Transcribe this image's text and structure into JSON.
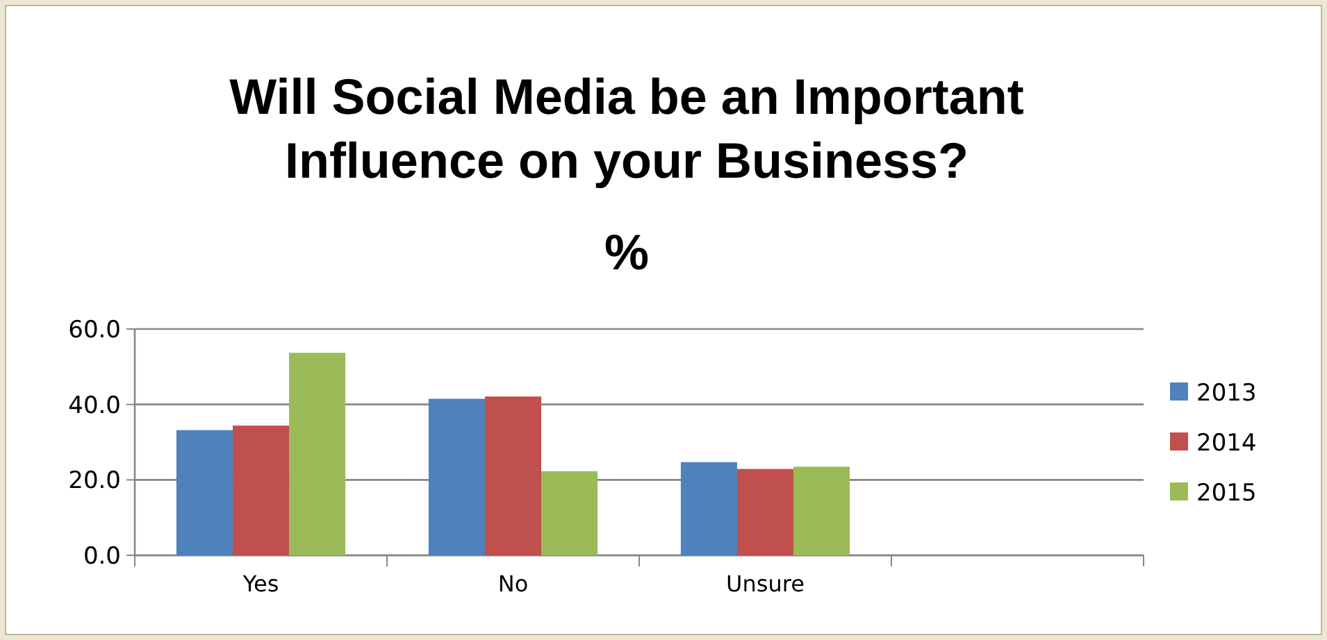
{
  "chart_data": {
    "type": "bar",
    "title": "Will Social Media be an Important Influence on your Business?",
    "subtitle": "%",
    "categories": [
      "Yes",
      "No",
      "Unsure",
      null
    ],
    "series": [
      {
        "name": "2013",
        "color": "#4f81bd",
        "values": [
          33.2,
          41.5,
          24.7,
          null
        ]
      },
      {
        "name": "2014",
        "color": "#c0504d",
        "values": [
          34.4,
          42.1,
          22.9,
          null
        ]
      },
      {
        "name": "2015",
        "color": "#9bbb59",
        "values": [
          53.7,
          22.3,
          23.5,
          null
        ]
      }
    ],
    "ylim": [
      0,
      60
    ],
    "yticks": [
      {
        "value": 0,
        "label": "0.0"
      },
      {
        "value": 20,
        "label": "20.0"
      },
      {
        "value": 40,
        "label": "40.0"
      },
      {
        "value": 60,
        "label": "60.0"
      }
    ],
    "grid": "y",
    "legend": "right"
  }
}
